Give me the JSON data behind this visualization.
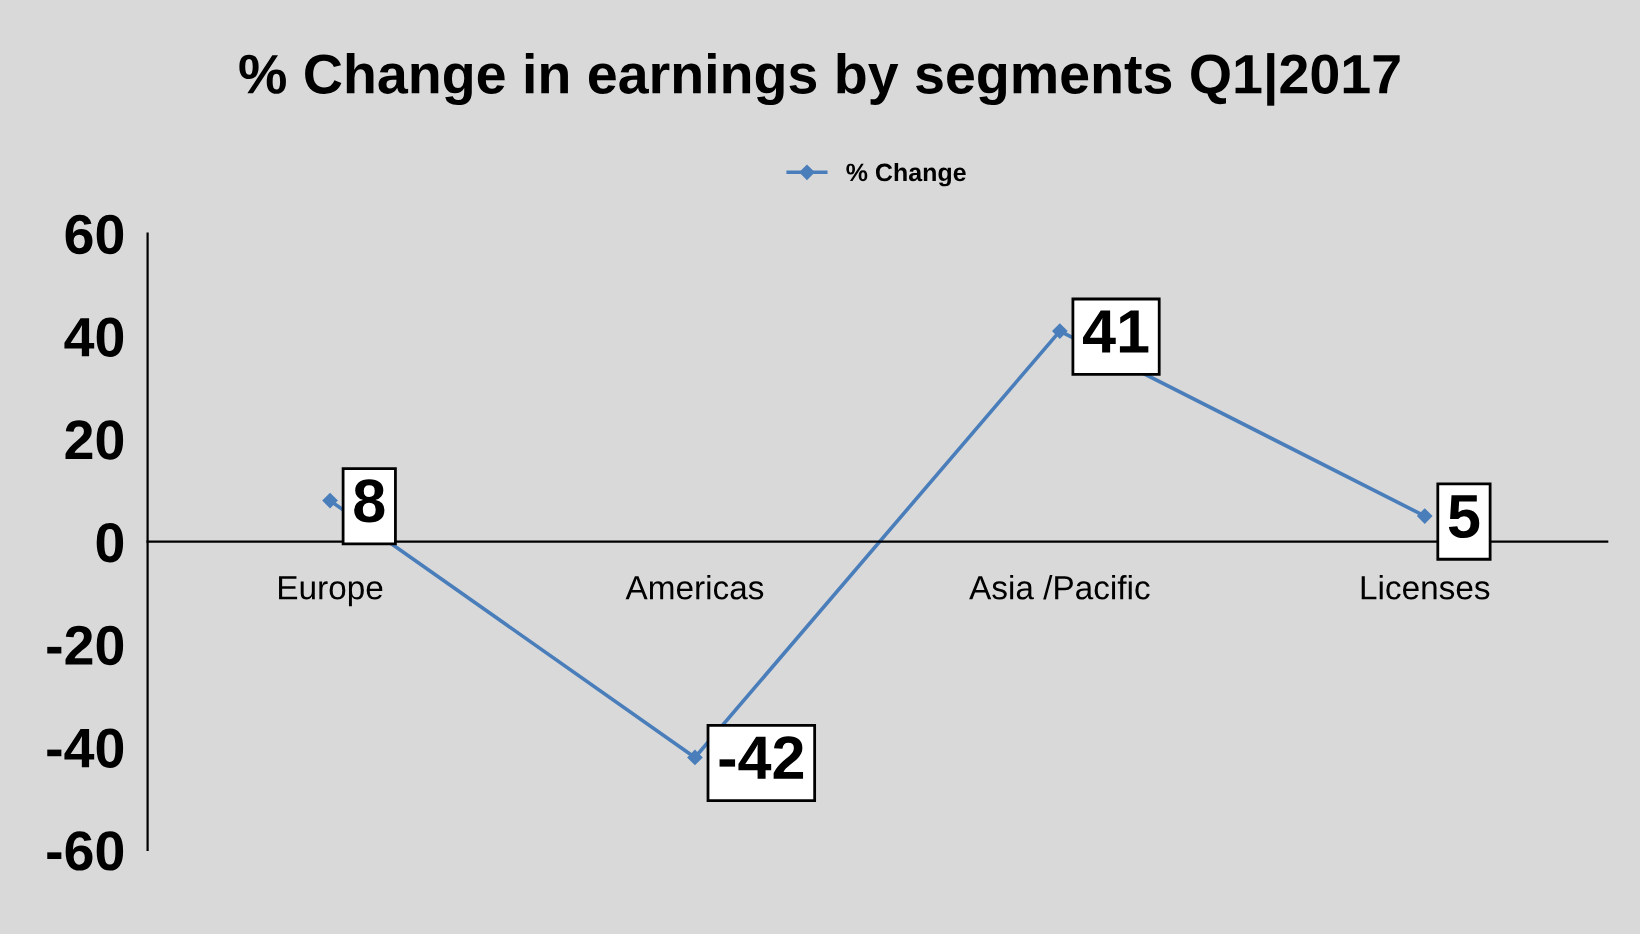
{
  "chart_data": {
    "type": "line",
    "title": "% Change in earnings by segments Q1|2017",
    "categories": [
      "Europe",
      "Americas",
      "Asia /Pacific",
      "Licenses"
    ],
    "series": [
      {
        "name": "% Change",
        "color": "#4a7ebb",
        "values": [
          8,
          -42,
          41,
          5
        ]
      }
    ],
    "ylim": [
      -60,
      60
    ],
    "yticks": [
      -60,
      -40,
      -20,
      0,
      20,
      40,
      60
    ],
    "grid": false,
    "legend": "top",
    "marker": "diamond",
    "line_style": "solid",
    "data_labels": true
  }
}
